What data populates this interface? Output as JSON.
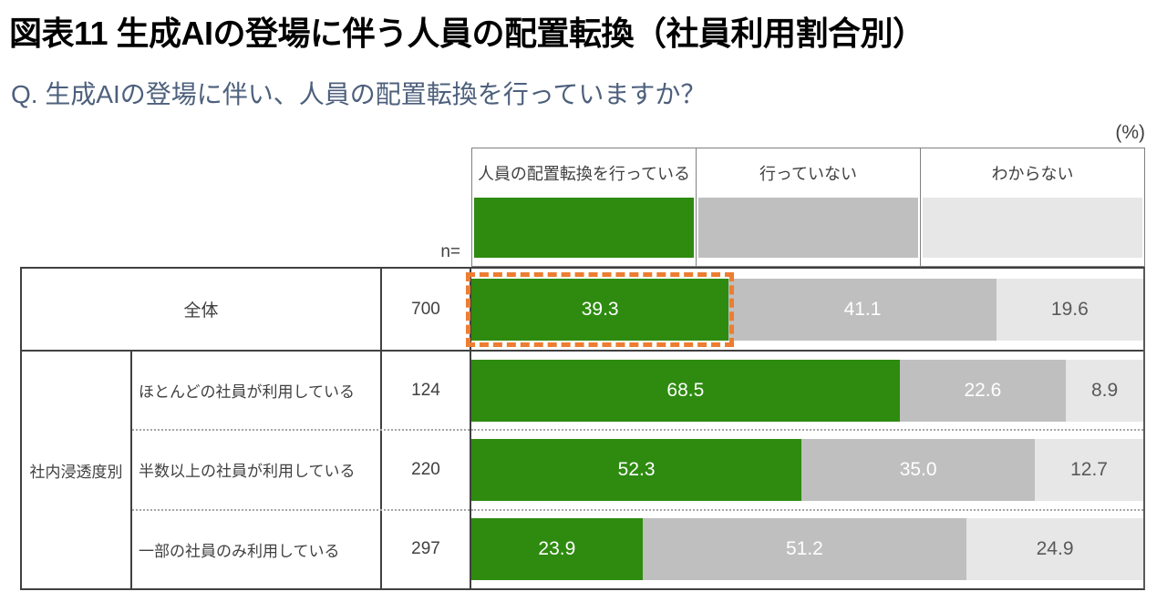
{
  "header": {
    "title": "図表11 生成AIの登場に伴う人員の配置転換（社員利用割合別）",
    "question": "Q. 生成AIの登場に伴い、人員の配置転換を行っていますか？"
  },
  "chart": {
    "unit_label": "(%)",
    "n_label": "n=",
    "group_label": "社内浸透度別",
    "legend": [
      {
        "label": "人員の配置転換を行っている",
        "color": "#2e8b10"
      },
      {
        "label": "行っていない",
        "color": "#bfbfbf"
      },
      {
        "label": "わからない",
        "color": "#e7e7e7"
      }
    ],
    "rows": [
      {
        "label": "全体",
        "n": "700",
        "values": [
          "39.3",
          "41.1",
          "19.6"
        ],
        "highlighted": true
      },
      {
        "label": "ほとんどの社員が利用している",
        "n": "124",
        "values": [
          "68.5",
          "22.6",
          "8.9"
        ],
        "highlighted": false
      },
      {
        "label": "半数以上の社員が利用している",
        "n": "220",
        "values": [
          "52.3",
          "35.0",
          "12.7"
        ],
        "highlighted": false
      },
      {
        "label": "一部の社員のみ利用している",
        "n": "297",
        "values": [
          "23.9",
          "51.2",
          "24.9"
        ],
        "highlighted": false
      }
    ],
    "colors": {
      "highlight_frame": "#ed7d31",
      "table_border": "#404040",
      "legend_border": "#808080",
      "question_text": "#4d607c",
      "dark_value_text": "#595959"
    }
  },
  "chart_data": {
    "type": "bar",
    "orientation": "horizontal-stacked",
    "title": "図表11 生成AIの登場に伴う人員の配置転換（社員利用割合別）",
    "subtitle": "Q. 生成AIの登場に伴い、人員の配置転換を行っていますか？",
    "unit": "%",
    "xlim": [
      0,
      100
    ],
    "categories": [
      "全体",
      "ほとんどの社員が利用している",
      "半数以上の社員が利用している",
      "一部の社員のみ利用している"
    ],
    "category_group": {
      "label": "社内浸透度別",
      "members": [
        "ほとんどの社員が利用している",
        "半数以上の社員が利用している",
        "一部の社員のみ利用している"
      ]
    },
    "n_values": [
      700,
      124,
      220,
      297
    ],
    "series": [
      {
        "name": "人員の配置転換を行っている",
        "color": "#2e8b10",
        "values": [
          39.3,
          68.5,
          52.3,
          23.9
        ]
      },
      {
        "name": "行っていない",
        "color": "#bfbfbf",
        "values": [
          41.1,
          22.6,
          35.0,
          51.2
        ]
      },
      {
        "name": "わからない",
        "color": "#e7e7e7",
        "values": [
          19.6,
          8.9,
          12.7,
          24.9
        ]
      }
    ],
    "legend_position": "top",
    "annotations": [
      "全体行の「人員の配置転換を行っている」セグメントに橙色破線の強調枠"
    ]
  }
}
